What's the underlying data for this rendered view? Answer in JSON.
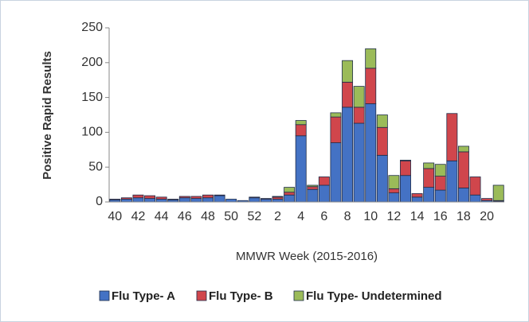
{
  "chart_data": {
    "type": "stacked_bar",
    "x_label": "MMWR Week (2015-2016)",
    "y_label": "Positive Rapid Results",
    "categories": [
      "40",
      null,
      "42",
      null,
      "44",
      null,
      "46",
      null,
      "48",
      null,
      "50",
      null,
      "52",
      null,
      "2",
      null,
      "4",
      null,
      "6",
      null,
      "8",
      null,
      "10",
      null,
      "12",
      null,
      "14",
      null,
      "16",
      null,
      "18",
      null,
      "20",
      null
    ],
    "series": [
      {
        "name": "Flu Type- A",
        "color": "#4472c4",
        "values": [
          3,
          4,
          6,
          5,
          4,
          3,
          6,
          5,
          6,
          9,
          4,
          2,
          6,
          4,
          4,
          10,
          95,
          18,
          24,
          85,
          136,
          113,
          141,
          67,
          13,
          38,
          7,
          21,
          17,
          59,
          20,
          10,
          2,
          1
        ]
      },
      {
        "name": "Flu Type- B",
        "color": "#d0464c",
        "values": [
          1,
          2,
          4,
          4,
          3,
          1,
          2,
          3,
          4,
          1,
          0,
          0,
          1,
          1,
          3,
          4,
          16,
          4,
          12,
          37,
          36,
          23,
          51,
          40,
          6,
          21,
          5,
          27,
          20,
          68,
          52,
          26,
          3,
          1
        ]
      },
      {
        "name": "Flu Type- Undetermined",
        "color": "#9bbb59",
        "values": [
          0,
          0,
          0,
          0,
          0,
          0,
          0,
          0,
          0,
          0,
          0,
          0,
          0,
          0,
          1,
          7,
          6,
          2,
          0,
          6,
          31,
          30,
          28,
          18,
          19,
          1,
          0,
          8,
          17,
          0,
          8,
          0,
          0,
          22
        ]
      }
    ],
    "ylim": [
      0,
      250
    ],
    "yticks": [
      0,
      50,
      100,
      150,
      200,
      250
    ],
    "grid": false,
    "legend": "bottom"
  }
}
